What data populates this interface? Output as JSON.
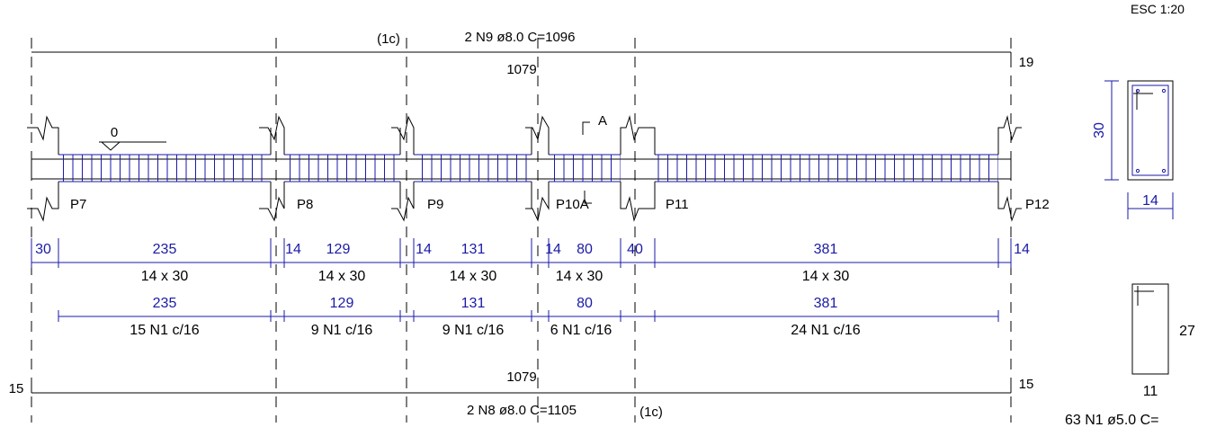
{
  "scale_label": "ESC 1:20",
  "top_bar": {
    "callout": "(1c)",
    "label": "2 N9 ø8.0  C=1096",
    "length": "1079",
    "hook": "19"
  },
  "bottom_bar": {
    "callout": "(1c)",
    "label": "2 N8 ø8.0  C=1105",
    "length": "1079",
    "hook_left": "15",
    "hook_right": "15"
  },
  "level_marker": "0",
  "section_marker": "A",
  "pillars": [
    "P7",
    "P8",
    "P9",
    "P10A",
    "P11",
    "P12"
  ],
  "pillar_widths": [
    "30",
    "14",
    "14",
    "14",
    "40",
    "14"
  ],
  "spans": [
    {
      "length": "235",
      "section": "14 x 30",
      "stirrup_len": "235",
      "stirrups": "15 N1 c/16"
    },
    {
      "length": "129",
      "section": "14 x 30",
      "stirrup_len": "129",
      "stirrups": "9 N1 c/16"
    },
    {
      "length": "131",
      "section": "14 x 30",
      "stirrup_len": "131",
      "stirrups": "9 N1 c/16"
    },
    {
      "length": "80",
      "section": "14 x 30",
      "stirrup_len": "80",
      "stirrups": "6 N1 c/16"
    },
    {
      "length": "381",
      "section": "14 x 30",
      "stirrup_len": "381",
      "stirrups": "24 N1 c/16"
    }
  ],
  "cross_section": {
    "height": "30",
    "width": "14"
  },
  "stirrup_detail": {
    "height": "27",
    "width": "11",
    "label": "63 N1 ø5.0  C="
  },
  "colors": {
    "line": "#000000",
    "dimension": "#1a1aa8"
  }
}
